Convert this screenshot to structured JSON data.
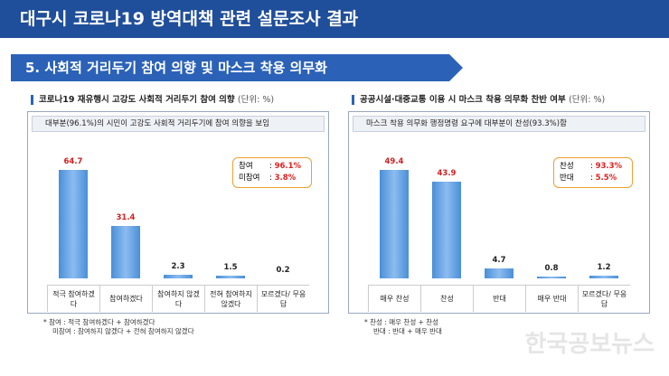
{
  "header": {
    "title": "대구시 코로나19 방역대책 관련 설문조사 결과",
    "section": "5. 사회적 거리두기 참여 의향 및 마스크 착용 의무화"
  },
  "chart_data": [
    {
      "type": "bar",
      "title": "코로나19 재유행시 고강도 사회적 거리두기 참여 의향",
      "unit": "(단위: %)",
      "subtitle": "대부분(96.1%)의 시민이 고강도 사회적 거리두기에 참여 의향을 보임",
      "categories": [
        "적극 참여하겠다",
        "참여하겠다",
        "참여하지 않겠다",
        "전혀 참여하지 않겠다",
        "모르겠다/ 무응답"
      ],
      "values": [
        64.7,
        31.4,
        2.3,
        1.5,
        0.2
      ],
      "color": "#4a8fd8",
      "summary": [
        {
          "label": "참여",
          "value": "96.1%"
        },
        {
          "label": "미참여",
          "value": "3.8%"
        }
      ],
      "notes": [
        "* 참여 : 적극 참여하겠다 + 참여하겠다",
        "미참여 : 참여하지 않겠다 + 전혀 참여하지 않겠다"
      ]
    },
    {
      "type": "bar",
      "title": "공공시설·대중교통 이용 시 마스크 착용 의무화 찬반 여부",
      "unit": "(단위: %)",
      "subtitle": "마스크 착용 의무화 행정명령 요구에 대부분이 찬성(93.3%)함",
      "categories": [
        "매우 찬성",
        "찬성",
        "반대",
        "매우 반대",
        "모르겠다/ 무응답"
      ],
      "values": [
        49.4,
        43.9,
        4.7,
        0.8,
        1.2
      ],
      "color": "#4a8fd8",
      "summary": [
        {
          "label": "찬성",
          "value": "93.3%"
        },
        {
          "label": "반대",
          "value": "5.5%"
        }
      ],
      "notes": [
        "* 찬성 : 매우 찬성 + 찬성",
        "반대 : 반대 + 매우 반대"
      ]
    }
  ],
  "watermark": "한국공보뉴스"
}
